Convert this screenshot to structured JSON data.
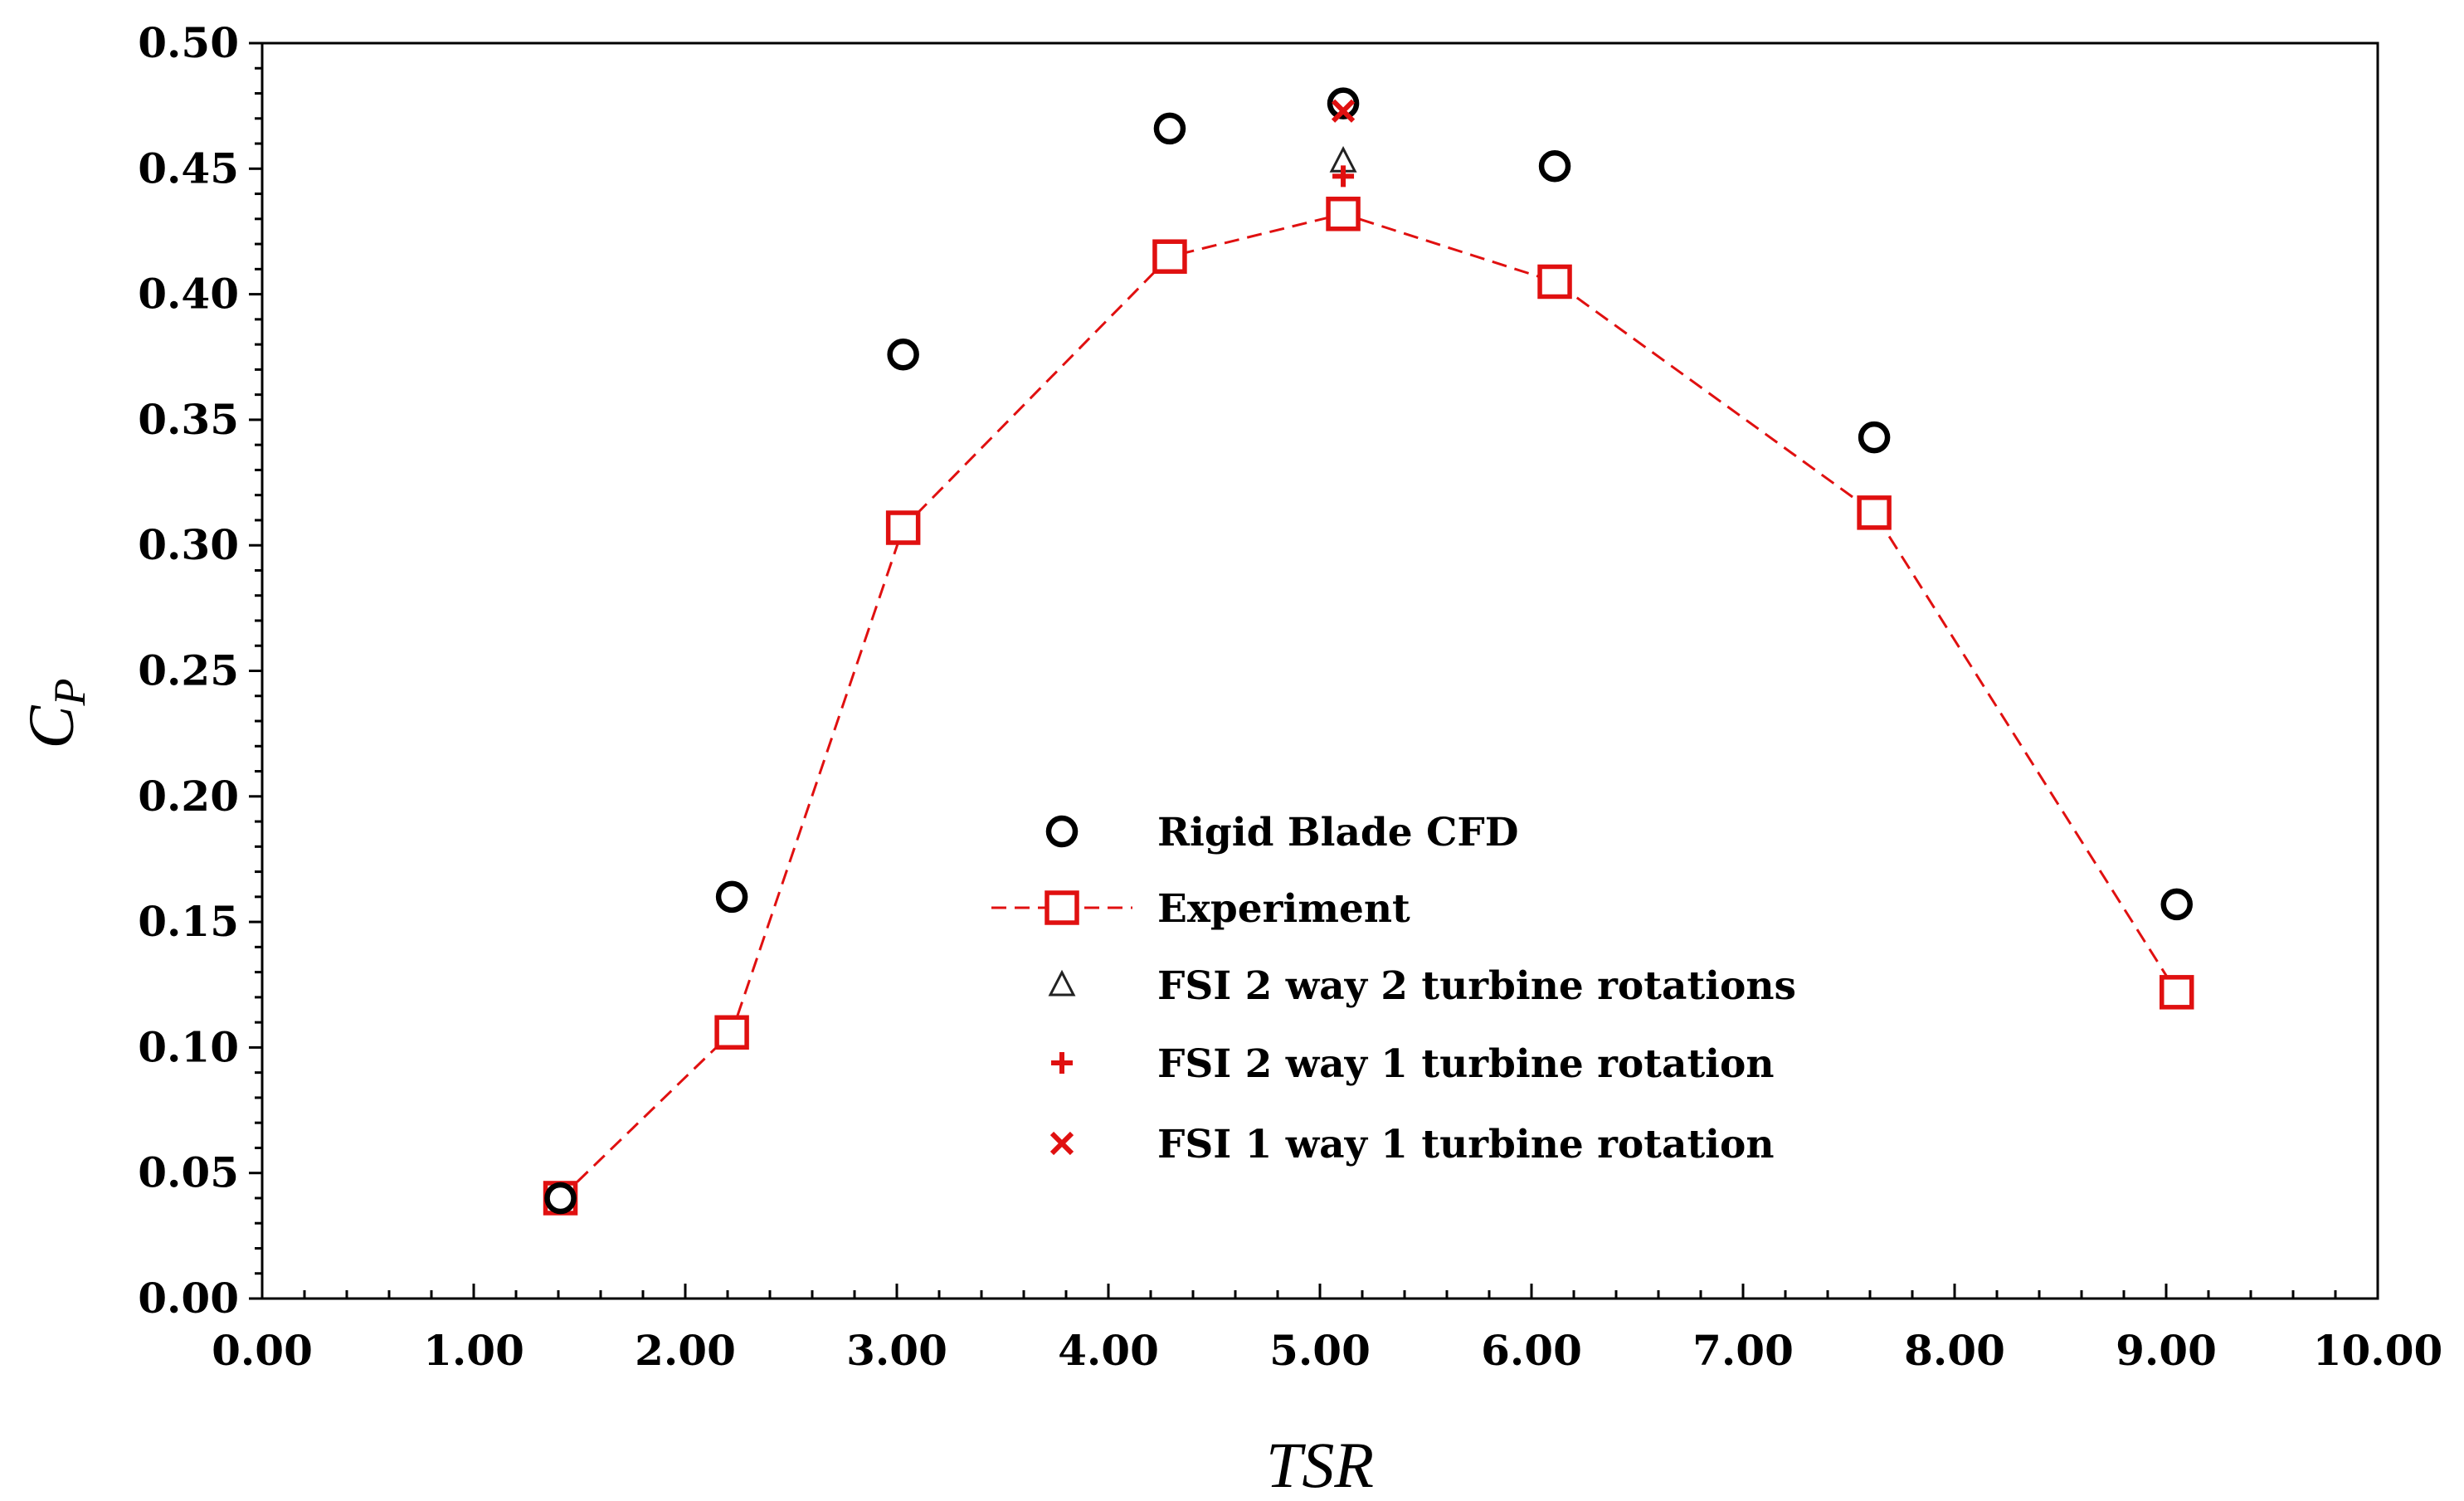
{
  "chart_data": {
    "type": "scatter",
    "title": "",
    "xlabel": "TSR",
    "ylabel_main": "C",
    "ylabel_sub": "P",
    "xlim": [
      0,
      10
    ],
    "ylim": [
      0,
      0.5
    ],
    "x_ticks": [
      "0.00",
      "1.00",
      "2.00",
      "3.00",
      "4.00",
      "5.00",
      "6.00",
      "7.00",
      "8.00",
      "9.00",
      "10.00"
    ],
    "y_ticks": [
      "0.00",
      "0.05",
      "0.10",
      "0.15",
      "0.20",
      "0.25",
      "0.30",
      "0.35",
      "0.40",
      "0.45",
      "0.50"
    ],
    "grid": false,
    "legend_position": "center",
    "series": [
      {
        "name": "Rigid Blade CFD",
        "marker": "circle",
        "line": false,
        "color": "#000000",
        "x": [
          1.41,
          2.22,
          3.03,
          4.29,
          5.11,
          6.11,
          7.62,
          9.05
        ],
        "y": [
          0.04,
          0.16,
          0.376,
          0.466,
          0.476,
          0.451,
          0.343,
          0.157
        ]
      },
      {
        "name": "Experiment",
        "marker": "square",
        "line": true,
        "color": "#e01010",
        "x": [
          1.41,
          2.22,
          3.03,
          4.29,
          5.11,
          6.11,
          7.62,
          9.05
        ],
        "y": [
          0.04,
          0.106,
          0.307,
          0.415,
          0.432,
          0.405,
          0.313,
          0.122
        ]
      },
      {
        "name": "FSI 2 way 2 turbine rotations",
        "marker": "triangle",
        "line": false,
        "color": "#222222",
        "x": [
          5.11
        ],
        "y": [
          0.453
        ]
      },
      {
        "name": "FSI 2 way 1 turbine rotation",
        "marker": "plus",
        "line": false,
        "color": "#e01010",
        "x": [
          5.11
        ],
        "y": [
          0.447
        ]
      },
      {
        "name": "FSI 1 way 1 turbine rotation",
        "marker": "x",
        "line": false,
        "color": "#e01010",
        "x": [
          5.11
        ],
        "y": [
          0.473
        ]
      }
    ]
  }
}
